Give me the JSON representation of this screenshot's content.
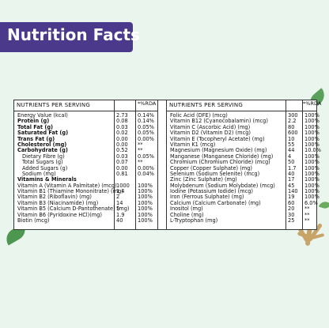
{
  "header": {
    "title": "Nutrition Facts"
  },
  "table": {
    "left": {
      "header_name": "NUTRIENTS PER SERVING",
      "header_rda": "*%RDA",
      "rows": [
        {
          "name": "Energy Value (kcal)",
          "amount": "2.73",
          "rda": "0.14%",
          "bold": false,
          "indent": false
        },
        {
          "name": "Protein (g)",
          "amount": "0.08",
          "rda": "0.14%",
          "bold": true,
          "indent": false
        },
        {
          "name": "Total Fat (g)",
          "amount": "0.03",
          "rda": "0.05%",
          "bold": true,
          "indent": false
        },
        {
          "name": "Saturated Fat (g)",
          "amount": "0.02",
          "rda": "0.05%",
          "bold": true,
          "indent": false
        },
        {
          "name": "Trans Fat (g)",
          "amount": "0.00",
          "rda": "0.00%",
          "bold": true,
          "indent": false
        },
        {
          "name": "Cholesterol (mg)",
          "amount": "0.00",
          "rda": "**",
          "bold": true,
          "indent": false
        },
        {
          "name": "Carbohydrate (g)",
          "amount": "0.52",
          "rda": "**",
          "bold": true,
          "indent": false
        },
        {
          "name": "Dietary Fibre (g)",
          "amount": "0.03",
          "rda": "0.05%",
          "bold": false,
          "indent": true
        },
        {
          "name": "Total Sugars (g)",
          "amount": "0.07",
          "rda": "**",
          "bold": false,
          "indent": true
        },
        {
          "name": "Added Sugars (g)",
          "amount": "0.00",
          "rda": "0.00%",
          "bold": false,
          "indent": true
        },
        {
          "name": "Sodium (mg)",
          "amount": "0.81",
          "rda": "0.04%",
          "bold": false,
          "indent": true
        },
        {
          "name": "Vitamins & Minerals",
          "amount": "",
          "rda": "",
          "bold": true,
          "indent": false
        },
        {
          "name": "Vitamin A (Vitamin A Palmitate) (mcg)",
          "amount": "1000",
          "rda": "100%",
          "bold": false,
          "indent": false
        },
        {
          "name": "Vitamin B1 (Thiamine Mononitrate) (mg)",
          "amount": "1.4",
          "rda": "100%",
          "bold": false,
          "indent": false
        },
        {
          "name": "Vitamin B2 (Riboflavin) (mg)",
          "amount": "2",
          "rda": "100%",
          "bold": false,
          "indent": false
        },
        {
          "name": "Vitamin B3 (Niacinamide) (mg)",
          "amount": "14",
          "rda": "100%",
          "bold": false,
          "indent": false
        },
        {
          "name": "Vitamin B5 (Calcium D-Pantothenate) (mg)",
          "amount": "5",
          "rda": "100%",
          "bold": false,
          "indent": false
        },
        {
          "name": "Vitamin B6 (Pyridoxine HCl)(mg)",
          "amount": "1.9",
          "rda": "100%",
          "bold": false,
          "indent": false
        },
        {
          "name": "Biotin (mcg)",
          "amount": "40",
          "rda": "100%",
          "bold": false,
          "indent": false
        }
      ]
    },
    "right": {
      "header_name": "NUTRIENTS PER SERVING",
      "header_rda": "*%RDA",
      "rows": [
        {
          "name": "Folic Acid (DFE) (mcg)",
          "amount": "300",
          "rda": "100%"
        },
        {
          "name": "Vitamin B12 (Cyanocobalamin) (mcg)",
          "amount": "2.2",
          "rda": "100%"
        },
        {
          "name": "Vitamin C (Ascorbic Acid) (mg)",
          "amount": "80",
          "rda": "100%"
        },
        {
          "name": "Vitamin D2 (Vitamin D2) (mcg)",
          "amount": "600",
          "rda": "100%"
        },
        {
          "name": "Vitamin E (Tocopheryl Acetate) (mg)",
          "amount": "10",
          "rda": "100%"
        },
        {
          "name": "Vitamin K1 (mcg)",
          "amount": "55",
          "rda": "100%"
        },
        {
          "name": "Magnesium (Magnesium Oxide) (mg)",
          "amount": "44",
          "rda": "10.0%"
        },
        {
          "name": "Manganese (Manganese Chloride) (mg)",
          "amount": "4",
          "rda": "100%"
        },
        {
          "name": "Chromium (Chromium Chloride) (mcg)",
          "amount": "50",
          "rda": "100%"
        },
        {
          "name": "Copper (Copper Sulphate) (mg)",
          "amount": "1.7",
          "rda": "100%"
        },
        {
          "name": "Selenium (Sodium Selenite) (mcg)",
          "amount": "40",
          "rda": "100%"
        },
        {
          "name": "Zinc (Zinc Sulphate) (mg)",
          "amount": "17",
          "rda": "100%"
        },
        {
          "name": "Molybdenum (Sodium Molybdate) (mcg)",
          "amount": "45",
          "rda": "100%"
        },
        {
          "name": "Iodine (Potassium Iodide) (mcg)",
          "amount": "140",
          "rda": "100%"
        },
        {
          "name": "Iron (Ferrous Sulphate) (mg)",
          "amount": "19",
          "rda": "100%"
        },
        {
          "name": "Calcium (Calcium Carbonate) (mg)",
          "amount": "60",
          "rda": "6.0%"
        },
        {
          "name": "Inositol (mg)",
          "amount": "20",
          "rda": "**"
        },
        {
          "name": "Choline (mg)",
          "amount": "30",
          "rda": "**"
        },
        {
          "name": "L-Tryptophan (mg)",
          "amount": "25",
          "rda": "**"
        }
      ]
    }
  }
}
